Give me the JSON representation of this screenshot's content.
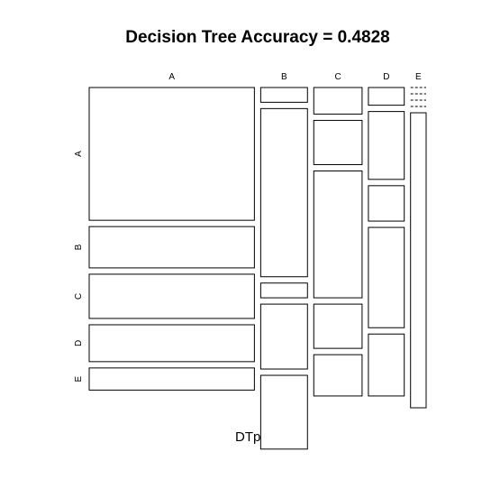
{
  "chart_data": {
    "type": "mosaic",
    "title": "Decision Tree Accuracy =  0.4828",
    "xlabel": "DTpred",
    "ylabel": "",
    "x_categories": [
      "A",
      "B",
      "C",
      "D",
      "E"
    ],
    "y_categories": [
      "A",
      "B",
      "C",
      "D",
      "E"
    ],
    "x_proportions": [
      0.53,
      0.15,
      0.155,
      0.115,
      0.05
    ],
    "cell_proportions": [
      [
        0.45,
        0.14,
        0.15,
        0.125,
        0.075
      ],
      [
        0.05,
        0.57,
        0.05,
        0.22,
        0.25
      ],
      [
        0.09,
        0.15,
        0.43,
        0.15,
        0.14
      ],
      [
        0.06,
        0.23,
        0.12,
        0.34,
        0.21
      ],
      [
        0.0,
        0.0,
        0.0,
        0.0,
        1.0
      ]
    ]
  }
}
